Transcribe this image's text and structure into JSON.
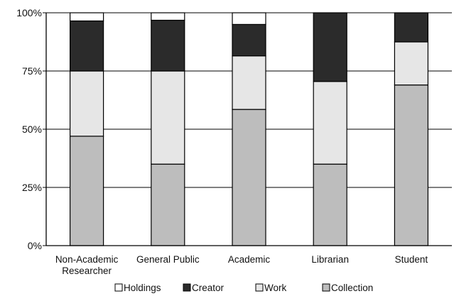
{
  "chart_data": {
    "type": "bar",
    "stacked": true,
    "orientation": "vertical",
    "categories": [
      "Non-Academic Researcher",
      "General Public",
      "Academic",
      "Librarian",
      "Student"
    ],
    "category_labels": [
      [
        "Non-Academic",
        "Researcher"
      ],
      [
        "General Public"
      ],
      [
        "Academic"
      ],
      [
        "Librarian"
      ],
      [
        "Student"
      ]
    ],
    "series": [
      {
        "name": "Collection",
        "values": [
          47,
          35,
          58.5,
          35,
          69
        ],
        "color": "#bdbdbd"
      },
      {
        "name": "Work",
        "values": [
          28,
          40,
          23,
          35.5,
          18.5
        ],
        "color": "#e6e6e6"
      },
      {
        "name": "Creator",
        "values": [
          21.5,
          21.8,
          13.5,
          29.5,
          12.5
        ],
        "color": "#2b2b2b"
      },
      {
        "name": "Holdings",
        "values": [
          3.5,
          3.2,
          5,
          0,
          0
        ],
        "color": "#ffffff"
      }
    ],
    "legend_order": [
      "Holdings",
      "Creator",
      "Work",
      "Collection"
    ],
    "ylim": [
      0,
      100
    ],
    "yticks": [
      {
        "value": 0,
        "label": "0%"
      },
      {
        "value": 25,
        "label": "25%"
      },
      {
        "value": 50,
        "label": "50%"
      },
      {
        "value": 75,
        "label": "75%"
      },
      {
        "value": 100,
        "label": "100%"
      }
    ],
    "grid": true,
    "legend_position": "bottom",
    "title": "",
    "xlabel": "",
    "ylabel": ""
  }
}
